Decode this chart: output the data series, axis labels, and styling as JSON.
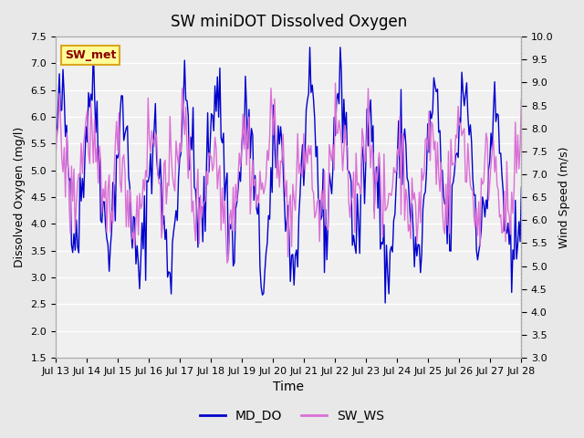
{
  "title": "SW miniDOT Dissolved Oxygen",
  "xlabel": "Time",
  "ylabel_left": "Dissolved Oxygen (mg/l)",
  "ylabel_right": "Wind Speed (m/s)",
  "annotation_text": "SW_met",
  "annotation_color": "#8B0000",
  "annotation_bg": "#FFFF99",
  "annotation_border": "#DAA520",
  "ylim_left": [
    1.5,
    7.5
  ],
  "ylim_right": [
    3.0,
    10.0
  ],
  "yticks_left": [
    1.5,
    2.0,
    2.5,
    3.0,
    3.5,
    4.0,
    4.5,
    5.0,
    5.5,
    6.0,
    6.5,
    7.0,
    7.5
  ],
  "yticks_right": [
    3.0,
    3.5,
    4.0,
    4.5,
    5.0,
    5.5,
    6.0,
    6.5,
    7.0,
    7.5,
    8.0,
    8.5,
    9.0,
    9.5,
    10.0
  ],
  "xtick_labels": [
    "Jul 13",
    "Jul 14",
    "Jul 15",
    "Jul 16",
    "Jul 17",
    "Jul 18",
    "Jul 19",
    "Jul 20",
    "Jul 21",
    "Jul 22",
    "Jul 23",
    "Jul 24",
    "Jul 25",
    "Jul 26",
    "Jul 27",
    "Jul 28"
  ],
  "xtick_positions": [
    0,
    1,
    2,
    3,
    4,
    5,
    6,
    7,
    8,
    9,
    10,
    11,
    12,
    13,
    14,
    15
  ],
  "xlim": [
    0,
    15
  ],
  "color_do": "#0000CD",
  "color_ws": "#DA70D6",
  "legend_labels": [
    "MD_DO",
    "SW_WS"
  ],
  "background_color": "#E8E8E8",
  "plot_bg_color": "#F0F0F0",
  "grid_color": "white",
  "seed": 42
}
